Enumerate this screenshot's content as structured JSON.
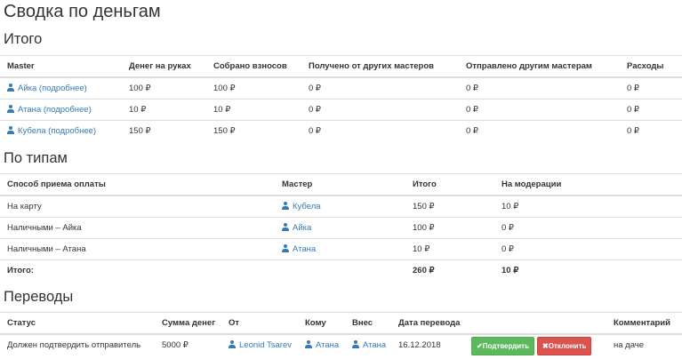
{
  "title": "Сводка по деньгам",
  "totals": {
    "heading": "Итого",
    "columns": [
      "Master",
      "Денег на руках",
      "Собрано взносов",
      "Получено от других мастеров",
      "Отправлено другим мастерам",
      "Расходы"
    ],
    "rows": [
      {
        "master": "Айка (подробнее)",
        "cash": "100 ₽",
        "collected": "100 ₽",
        "received": "0 ₽",
        "sent": "0 ₽",
        "expenses": "0 ₽"
      },
      {
        "master": "Атана (подробнее)",
        "cash": "10 ₽",
        "collected": "10 ₽",
        "received": "0 ₽",
        "sent": "0 ₽",
        "expenses": "0 ₽"
      },
      {
        "master": "Кубела (подробнее)",
        "cash": "150 ₽",
        "collected": "150 ₽",
        "received": "0 ₽",
        "sent": "0 ₽",
        "expenses": "0 ₽"
      }
    ]
  },
  "by_type": {
    "heading": "По типам",
    "columns": [
      "Способ приема оплаты",
      "Мастер",
      "Итого",
      "На модерации"
    ],
    "rows": [
      {
        "method": "На карту",
        "master": "Кубела",
        "total": "150 ₽",
        "moderation": "10 ₽"
      },
      {
        "method": "Наличными – Айка",
        "master": "Айка",
        "total": "100 ₽",
        "moderation": "0 ₽"
      },
      {
        "method": "Наличными – Атана",
        "master": "Атана",
        "total": "10 ₽",
        "moderation": "0 ₽"
      }
    ],
    "summary": {
      "label": "Итого:",
      "total": "260 ₽",
      "moderation": "10 ₽"
    }
  },
  "transfers": {
    "heading": "Переводы",
    "columns": [
      "Статус",
      "Сумма денег",
      "От",
      "Кому",
      "Внес",
      "Дата перевода",
      "",
      "Комментарий"
    ],
    "rows": [
      {
        "status": "Должен подтвердить отправитель",
        "amount": "5000 ₽",
        "from": "Leonid Tsarev",
        "to": "Атана",
        "by": "Атана",
        "date": "16.12.2018",
        "confirm": "✔Подтвердить",
        "reject": "✖Отклонить",
        "comment": "на даче"
      }
    ]
  },
  "colors": {
    "link": "#337ab7",
    "confirm": "#5cb85c",
    "reject": "#d9534f"
  }
}
